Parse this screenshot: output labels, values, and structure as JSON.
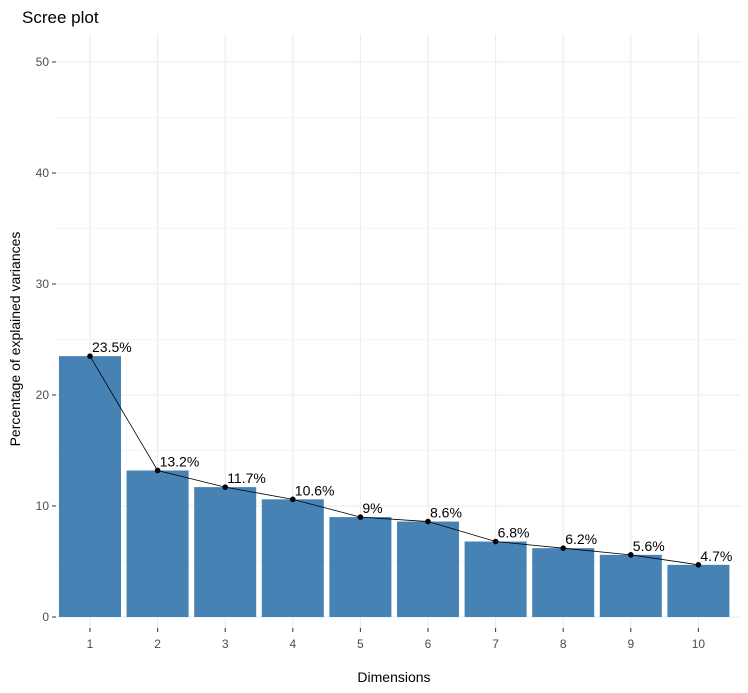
{
  "chart_data": {
    "type": "bar",
    "title": "Scree plot",
    "xlabel": "Dimensions",
    "ylabel": "Percentage of explained variances",
    "categories": [
      "1",
      "2",
      "3",
      "4",
      "5",
      "6",
      "7",
      "8",
      "9",
      "10"
    ],
    "values": [
      23.5,
      13.2,
      11.7,
      10.6,
      9.0,
      8.6,
      6.8,
      6.2,
      5.6,
      4.7
    ],
    "data_labels": [
      "23.5%",
      "13.2%",
      "11.7%",
      "10.6%",
      "9%",
      "8.6%",
      "6.8%",
      "6.2%",
      "5.6%",
      "4.7%"
    ],
    "ylim": [
      0,
      52.5
    ],
    "yticks": [
      0,
      10,
      20,
      30,
      40,
      50
    ],
    "grid": true,
    "line_overlay": true,
    "colors": {
      "bar": "#4682B4",
      "line": "#000000",
      "grid": "#ebebeb",
      "background": "#ffffff"
    }
  }
}
